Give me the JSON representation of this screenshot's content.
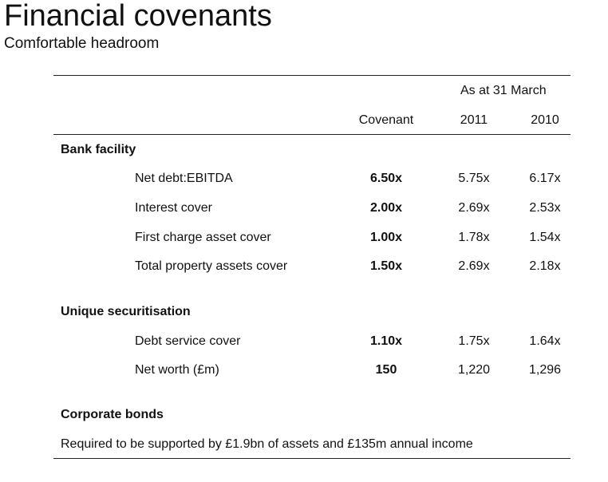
{
  "header": {
    "title": "Financial covenants",
    "subtitle": "Comfortable headroom"
  },
  "table": {
    "group_header": "As at 31 March",
    "columns": {
      "covenant": "Covenant",
      "y2011": "2011",
      "y2010": "2010"
    },
    "bank_facility": {
      "title": "Bank facility",
      "rows": [
        {
          "label": "Net debt:EBITDA",
          "covenant": "6.50x",
          "y2011": "5.75x",
          "y2010": "6.17x"
        },
        {
          "label": "Interest cover",
          "covenant": "2.00x",
          "y2011": "2.69x",
          "y2010": "2.53x"
        },
        {
          "label": "First charge asset cover",
          "covenant": "1.00x",
          "y2011": "1.78x",
          "y2010": "1.54x"
        },
        {
          "label": "Total property assets cover",
          "covenant": "1.50x",
          "y2011": "2.69x",
          "y2010": "2.18x"
        }
      ]
    },
    "unique_securitisation": {
      "title": "Unique securitisation",
      "rows": [
        {
          "label": "Debt service cover",
          "covenant": "1.10x",
          "y2011": "1.75x",
          "y2010": "1.64x"
        },
        {
          "label": "Net worth (£m)",
          "covenant": "150",
          "y2011": "1,220",
          "y2010": "1,296"
        }
      ]
    },
    "corporate_bonds": {
      "title": "Corporate bonds",
      "note": "Required to be supported by £1.9bn of assets and £135m annual income"
    }
  }
}
